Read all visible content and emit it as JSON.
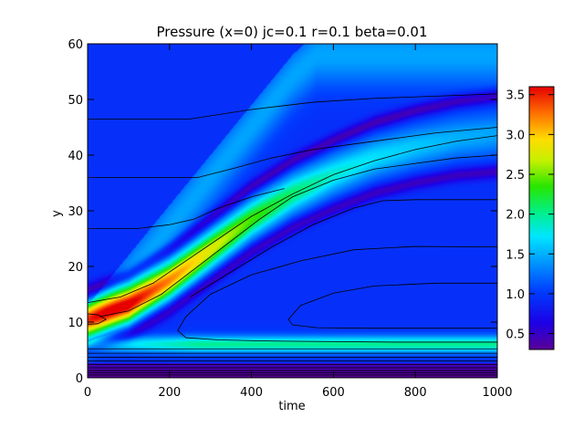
{
  "chart_data": {
    "type": "heatmap",
    "title": "Pressure (x=0) jc=0.1 r=0.1 beta=0.01",
    "xlabel": "time",
    "ylabel": "y",
    "xlim": [
      0,
      1000
    ],
    "ylim": [
      0,
      60
    ],
    "xticks": [
      0,
      200,
      400,
      600,
      800,
      1000
    ],
    "yticks": [
      0,
      10,
      20,
      30,
      40,
      50,
      60
    ],
    "colorbar": {
      "min": 0.3,
      "max": 3.6,
      "ticks": [
        0.5,
        1.0,
        1.5,
        2.0,
        2.5,
        3.0,
        3.5
      ],
      "tick_labels": [
        "0.5",
        "1.0",
        "1.5",
        "2.0",
        "2.5",
        "3.0",
        "3.5"
      ]
    },
    "grid": false,
    "features": {
      "background_value": 0.95,
      "ridge_center_y": [
        [
          0,
          10.5
        ],
        [
          100,
          13
        ],
        [
          200,
          17.5
        ],
        [
          300,
          23
        ],
        [
          400,
          28.5
        ],
        [
          500,
          33
        ],
        [
          600,
          36.5
        ],
        [
          700,
          39.5
        ],
        [
          800,
          41.5
        ],
        [
          900,
          43
        ],
        [
          1000,
          43.8
        ]
      ],
      "ridge_peak": [
        [
          0,
          3.0
        ],
        [
          100,
          3.5
        ],
        [
          200,
          3.2
        ],
        [
          300,
          2.8
        ],
        [
          400,
          2.4
        ],
        [
          500,
          2.1
        ],
        [
          600,
          1.85
        ],
        [
          700,
          1.7
        ],
        [
          800,
          1.6
        ],
        [
          900,
          1.5
        ],
        [
          1000,
          1.45
        ]
      ],
      "front_y": [
        [
          0,
          13
        ],
        [
          100,
          22
        ],
        [
          200,
          31
        ],
        [
          300,
          40
        ],
        [
          400,
          49
        ],
        [
          500,
          58
        ],
        [
          560,
          62
        ]
      ],
      "lower_band_y": 6,
      "lower_band_value": 2.0
    },
    "contours": [
      {
        "x": [
          0,
          250,
          400,
          550,
          700,
          850,
          1000
        ],
        "y": [
          46.5,
          46.5,
          48.2,
          49.5,
          50.2,
          50.6,
          51
        ]
      },
      {
        "x": [
          0,
          270,
          350,
          450,
          550,
          650,
          750,
          850,
          1000
        ],
        "y": [
          36,
          36,
          37.5,
          39.5,
          41,
          42,
          43,
          44,
          45
        ]
      },
      {
        "x": [
          0,
          120,
          200,
          260,
          320,
          400,
          480
        ],
        "y": [
          26.8,
          26.8,
          27.5,
          28.5,
          30.5,
          32.5,
          34
        ]
      },
      {
        "x": [
          0,
          80,
          160,
          240,
          320,
          400,
          500,
          600,
          700,
          800,
          900,
          1000
        ],
        "y": [
          13.5,
          14.5,
          17,
          21,
          25,
          29,
          33,
          36.5,
          39,
          41,
          42.5,
          43.5
        ]
      },
      {
        "x": [
          30,
          100,
          180,
          260,
          340,
          420,
          500,
          600,
          700,
          800,
          900,
          1000
        ],
        "y": [
          11,
          12,
          15,
          19.5,
          24,
          28.5,
          32.5,
          35.5,
          37.5,
          38.5,
          39.5,
          40
        ]
      },
      {
        "x": [
          250,
          350,
          450,
          550,
          650,
          720,
          800,
          900,
          1000
        ],
        "y": [
          14.5,
          19,
          23.5,
          27.5,
          30.5,
          31.8,
          32,
          32,
          32
        ]
      },
      {
        "x": [
          1000,
          800,
          650,
          520,
          400,
          300,
          240,
          220,
          240,
          320,
          450,
          600,
          750,
          900,
          1000
        ],
        "y": [
          23.5,
          23.6,
          23,
          21,
          18.5,
          15,
          11,
          8.5,
          7.2,
          6.8,
          6.6,
          6.5,
          6.4,
          6.4,
          6.4
        ]
      },
      {
        "x": [
          1000,
          850,
          700,
          600,
          520,
          490,
          500,
          560,
          680,
          800,
          900,
          1000
        ],
        "y": [
          17,
          17,
          16.5,
          15.2,
          13,
          10.5,
          9.5,
          9,
          8.9,
          8.9,
          8.9,
          8.9
        ]
      },
      {
        "x": [
          0,
          25,
          45,
          25,
          0
        ],
        "y": [
          11.5,
          11.3,
          10.5,
          9.7,
          9.6
        ]
      },
      {
        "x": [
          0,
          1000
        ],
        "y": [
          5.2,
          5.2
        ]
      },
      {
        "x": [
          0,
          1000
        ],
        "y": [
          4.4,
          4.4
        ]
      },
      {
        "x": [
          0,
          1000
        ],
        "y": [
          3.7,
          3.7
        ]
      },
      {
        "x": [
          0,
          1000
        ],
        "y": [
          3.0,
          3.0
        ]
      },
      {
        "x": [
          0,
          1000
        ],
        "y": [
          2.4,
          2.4
        ]
      },
      {
        "x": [
          0,
          1000
        ],
        "y": [
          1.8,
          1.8
        ]
      },
      {
        "x": [
          0,
          1000
        ],
        "y": [
          1.3,
          1.3
        ]
      },
      {
        "x": [
          0,
          1000
        ],
        "y": [
          0.9,
          0.9
        ]
      },
      {
        "x": [
          0,
          1000
        ],
        "y": [
          0.5,
          0.5
        ]
      }
    ]
  }
}
